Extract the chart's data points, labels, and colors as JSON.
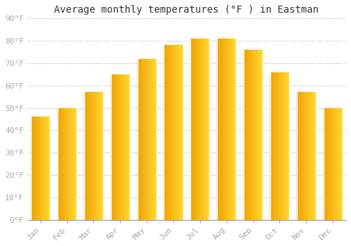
{
  "title": "Average monthly temperatures (°F ) in Eastman",
  "months": [
    "Jan",
    "Feb",
    "Mar",
    "Apr",
    "May",
    "Jun",
    "Jul",
    "Aug",
    "Sep",
    "Oct",
    "Nov",
    "Dec"
  ],
  "values": [
    46,
    50,
    57,
    65,
    72,
    78,
    81,
    81,
    76,
    66,
    57,
    50
  ],
  "bar_color_dark": "#F0A000",
  "bar_color_mid": "#FFC030",
  "bar_color_light": "#FFD060",
  "background_color": "#FFFFFF",
  "grid_color": "#DDDDDD",
  "ylim": [
    0,
    90
  ],
  "ytick_step": 10,
  "title_fontsize": 10,
  "tick_fontsize": 8,
  "axis_label_color": "#AAAAAA",
  "bar_edge_color": "#FFFFFF"
}
